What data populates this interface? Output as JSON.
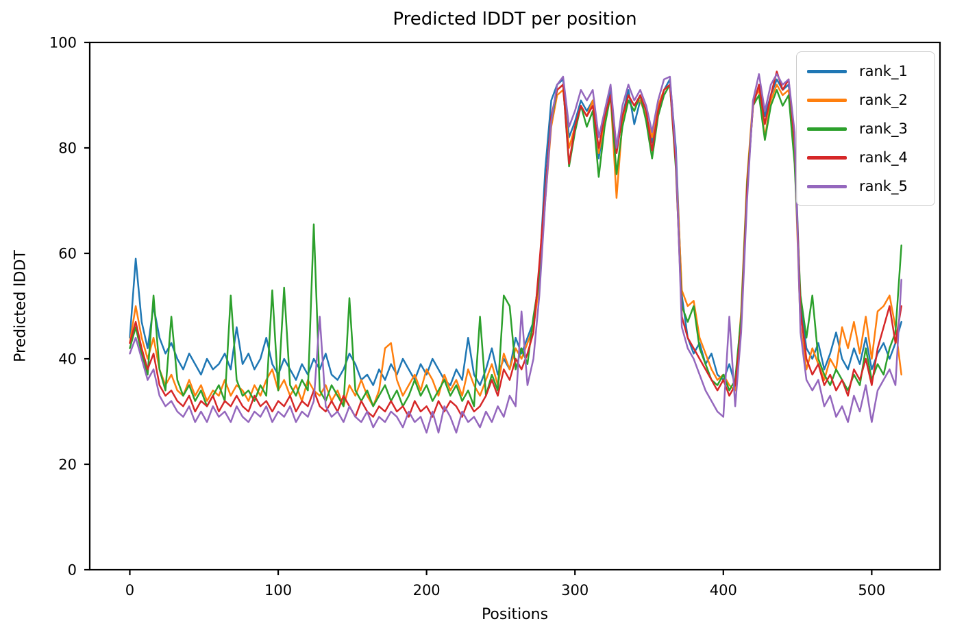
{
  "figure": {
    "background": "#ffffff",
    "axis_color": "#000000",
    "legend_border_color": "#cccccc"
  },
  "chart_data": {
    "type": "line",
    "title": "Predicted lDDT per position",
    "xlabel": "Positions",
    "ylabel": "Predicted lDDT",
    "xlim": [
      -27,
      546
    ],
    "ylim": [
      0,
      100
    ],
    "xticks": [
      0,
      100,
      200,
      300,
      400,
      500
    ],
    "yticks": [
      0,
      20,
      40,
      60,
      80,
      100
    ],
    "grid": false,
    "legend_position": "upper right",
    "x": [
      0,
      4,
      8,
      12,
      16,
      20,
      24,
      28,
      32,
      36,
      40,
      44,
      48,
      52,
      56,
      60,
      64,
      68,
      72,
      76,
      80,
      84,
      88,
      92,
      96,
      100,
      104,
      108,
      112,
      116,
      120,
      124,
      128,
      132,
      136,
      140,
      144,
      148,
      152,
      156,
      160,
      164,
      168,
      172,
      176,
      180,
      184,
      188,
      192,
      196,
      200,
      204,
      208,
      212,
      216,
      220,
      224,
      228,
      232,
      236,
      240,
      244,
      248,
      252,
      256,
      260,
      264,
      268,
      272,
      276,
      280,
      284,
      288,
      292,
      296,
      300,
      304,
      308,
      312,
      316,
      320,
      324,
      328,
      332,
      336,
      340,
      344,
      348,
      352,
      356,
      360,
      364,
      368,
      372,
      376,
      380,
      384,
      388,
      392,
      396,
      400,
      404,
      408,
      412,
      416,
      420,
      424,
      428,
      432,
      436,
      440,
      444,
      448,
      452,
      456,
      460,
      464,
      468,
      472,
      476,
      480,
      484,
      488,
      492,
      496,
      500,
      504,
      508,
      512,
      516,
      520
    ],
    "series": [
      {
        "name": "rank_1",
        "color": "#1f77b4",
        "values": [
          44,
          59,
          47,
          42,
          50,
          44,
          41,
          43,
          40,
          38,
          41,
          39,
          37,
          40,
          38,
          39,
          41,
          38,
          46,
          39,
          41,
          38,
          40,
          44,
          39,
          37,
          40,
          38,
          36,
          39,
          37,
          40,
          38,
          41,
          37,
          36,
          38,
          41,
          39,
          36,
          37,
          35,
          38,
          36,
          39,
          37,
          40,
          38,
          36,
          39,
          37,
          40,
          38,
          36,
          35,
          38,
          36,
          44,
          37,
          35,
          38,
          42,
          37,
          40,
          38,
          44,
          41,
          44,
          47,
          56,
          76,
          89,
          92,
          93,
          82,
          85,
          89,
          87,
          89,
          78,
          85,
          91,
          80,
          86,
          91,
          84.5,
          89,
          86,
          81,
          87,
          91,
          93,
          80,
          52,
          44,
          41,
          43,
          39,
          41,
          37,
          36,
          39,
          35,
          47,
          72,
          88,
          92,
          86,
          90,
          93,
          91,
          92,
          82,
          50,
          42,
          40,
          43,
          38,
          41,
          45,
          40,
          38,
          42,
          39,
          44,
          38,
          41,
          43,
          40,
          43,
          47
        ]
      },
      {
        "name": "rank_2",
        "color": "#ff7f0e",
        "values": [
          43,
          50,
          44,
          40,
          44,
          38,
          35,
          37,
          34,
          33,
          36,
          33,
          35,
          32,
          34,
          33,
          36,
          33,
          35,
          34,
          32,
          35,
          33,
          36,
          38,
          34,
          36,
          33,
          35,
          32,
          36,
          34,
          33,
          35,
          32,
          34,
          31,
          35,
          33,
          36,
          33,
          31,
          34,
          42,
          43,
          36,
          33,
          35,
          37,
          34,
          38,
          36,
          33,
          37,
          34,
          36,
          33,
          38,
          35,
          33,
          36,
          39,
          35,
          41,
          38,
          42,
          40,
          43,
          46,
          54,
          70,
          84,
          90,
          91,
          80,
          84,
          88,
          86,
          89,
          79,
          85,
          90,
          70.5,
          85,
          90,
          88,
          89,
          86,
          82,
          88,
          91,
          92,
          78,
          53,
          50,
          51,
          44,
          41,
          38,
          36,
          37,
          35,
          34,
          49,
          74,
          89,
          91,
          82,
          89,
          92,
          90,
          91,
          79,
          46,
          38,
          42,
          39,
          36,
          40,
          38,
          46,
          42,
          47,
          41,
          48,
          40,
          49,
          50,
          52,
          46,
          37
        ]
      },
      {
        "name": "rank_3",
        "color": "#2ca02c",
        "values": [
          42,
          46,
          41,
          37,
          52,
          38,
          34,
          48,
          36,
          33,
          35,
          32,
          34,
          31,
          33,
          35,
          32,
          52,
          36,
          33,
          34,
          32,
          35,
          33,
          53,
          34,
          53.5,
          35,
          33,
          36,
          34,
          65.5,
          34,
          32,
          35,
          33,
          31,
          51.5,
          34,
          32,
          34,
          31,
          33,
          35,
          32,
          34,
          31,
          33,
          36,
          33,
          35,
          32,
          34,
          36,
          33,
          35,
          32,
          34,
          31,
          48,
          33,
          37,
          34,
          52,
          50,
          38,
          42,
          39,
          48,
          55,
          72,
          85,
          91,
          92,
          76.5,
          83,
          88,
          84,
          87,
          74.5,
          84,
          90,
          75,
          84,
          89,
          87,
          90,
          85,
          78,
          86,
          90,
          92,
          76,
          50,
          47,
          50,
          42,
          39,
          36,
          35,
          37,
          34,
          36,
          48,
          73,
          88,
          90,
          81.5,
          88,
          91,
          88,
          90,
          77,
          52,
          44,
          52,
          40,
          37,
          35,
          38,
          36,
          34,
          37,
          35,
          42,
          36,
          39,
          37,
          42,
          45,
          61.5
        ]
      },
      {
        "name": "rank_4",
        "color": "#d62728",
        "values": [
          43,
          47,
          42,
          38,
          41,
          35,
          33,
          34,
          32,
          31,
          33,
          30,
          32,
          31,
          33,
          30,
          32,
          31,
          33,
          31,
          30,
          33,
          31,
          32,
          30,
          32,
          31,
          33,
          30,
          32,
          31,
          34,
          31,
          30,
          32,
          30,
          33,
          31,
          29,
          32,
          30,
          29,
          31,
          30,
          32,
          30,
          31,
          29,
          32,
          30,
          31,
          29,
          32,
          30,
          32,
          31,
          29,
          32,
          30,
          31,
          33,
          36,
          33,
          38,
          36,
          40,
          38,
          41,
          45,
          58,
          72,
          86,
          91,
          92,
          77,
          84,
          88,
          86,
          88,
          80,
          86,
          90,
          79,
          86,
          90,
          88,
          90,
          87,
          79.5,
          87,
          91,
          92,
          77,
          48,
          44,
          42,
          40,
          38,
          36,
          34,
          36,
          33,
          35,
          46,
          72,
          88,
          92,
          84.5,
          90,
          94.5,
          91,
          93,
          81,
          49,
          40,
          37,
          39,
          35,
          37,
          34,
          36,
          33,
          38,
          36,
          40,
          35,
          42,
          46,
          50,
          43,
          50
        ]
      },
      {
        "name": "rank_5",
        "color": "#9467bd",
        "values": [
          41,
          44,
          40,
          36,
          38,
          33,
          31,
          32,
          30,
          29,
          31,
          28,
          30,
          28,
          31,
          29,
          30,
          28,
          31,
          29,
          28,
          30,
          29,
          31,
          28,
          30,
          29,
          31,
          28,
          30,
          29,
          32,
          48,
          31,
          29,
          30,
          28,
          31,
          29,
          28,
          30,
          27,
          29,
          28,
          30,
          29,
          27,
          30,
          28,
          29,
          26,
          30,
          26,
          31,
          29,
          26,
          30,
          28,
          29,
          27,
          30,
          28,
          31,
          29,
          33,
          31,
          49,
          35,
          40,
          52,
          70,
          85,
          92,
          93.5,
          84,
          87,
          91,
          89,
          91,
          82,
          87,
          92,
          80,
          88,
          92,
          89,
          91,
          88,
          83,
          89,
          93,
          93.5,
          79,
          46,
          42,
          40,
          37,
          34,
          32,
          30,
          29,
          48,
          31,
          45,
          70,
          89,
          94,
          87,
          92,
          94,
          92,
          93,
          83,
          45,
          36,
          34,
          36,
          31,
          33,
          29,
          31,
          28,
          33,
          30,
          35,
          28,
          34,
          36,
          38,
          35,
          55
        ]
      }
    ]
  }
}
